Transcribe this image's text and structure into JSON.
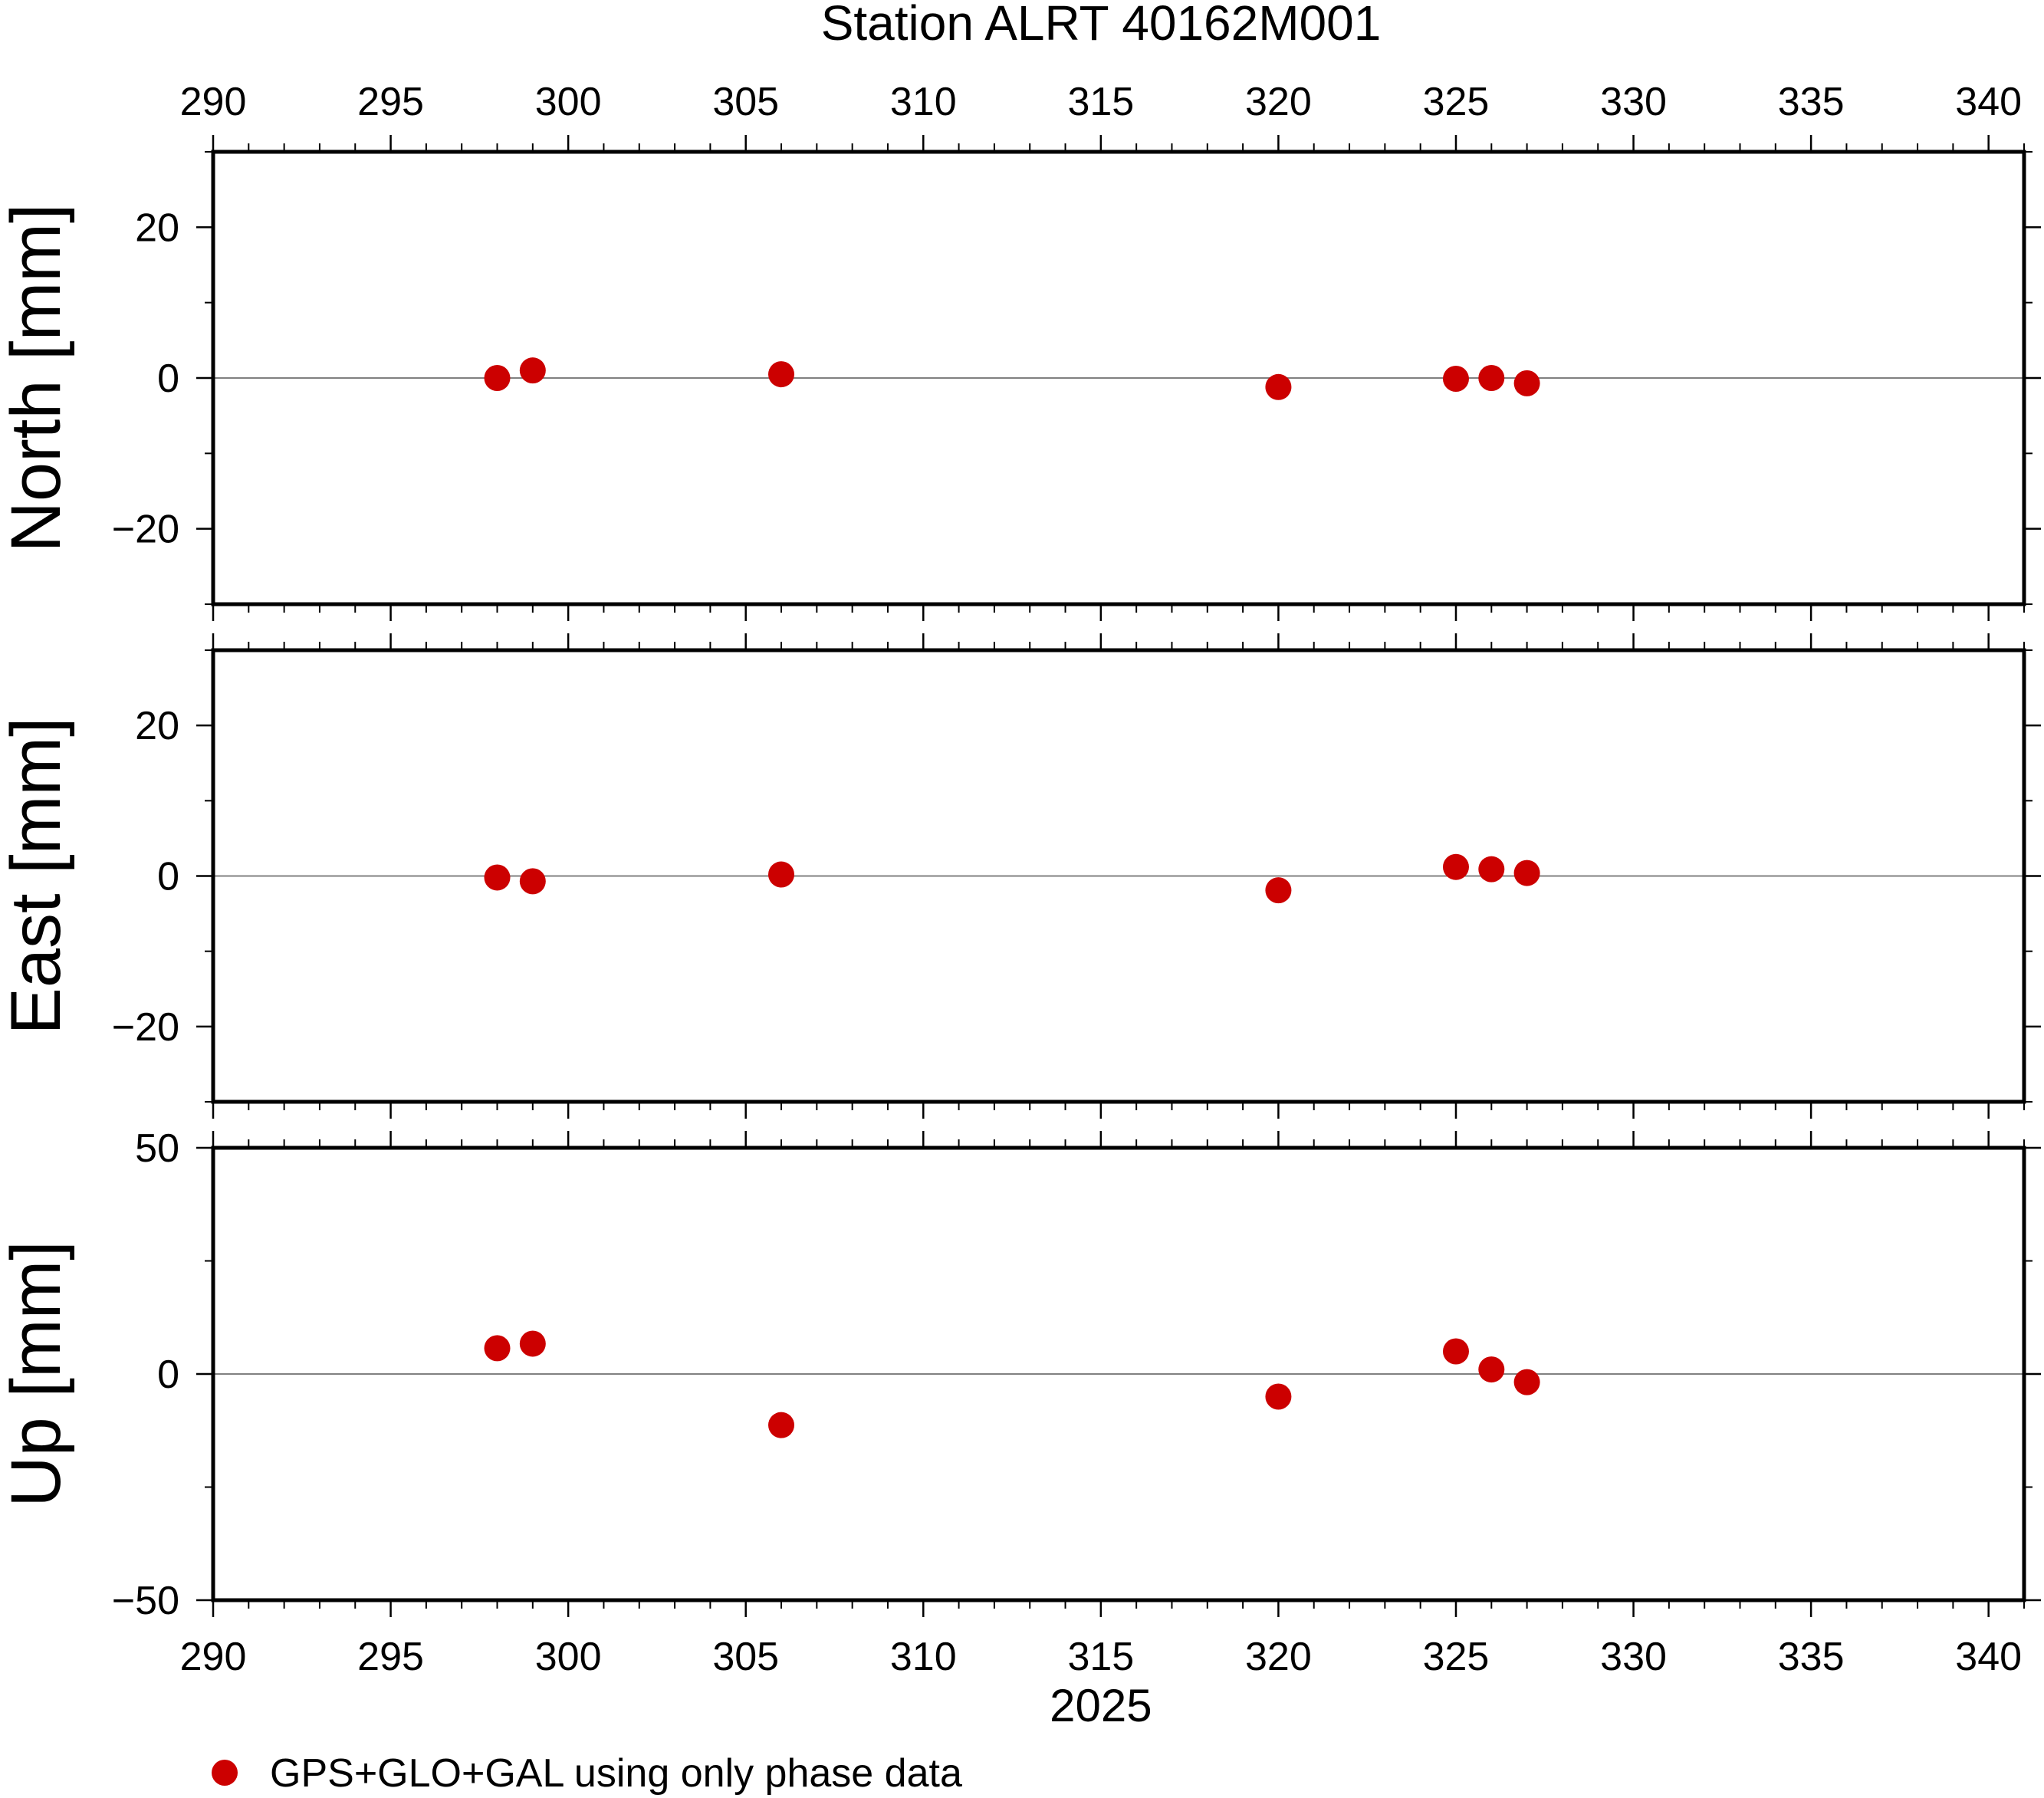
{
  "title": "Station ALRT 40162M001",
  "colors": {
    "point": "#cc0000",
    "frame": "#000000",
    "zero_line": "#808080",
    "background": "#ffffff"
  },
  "chart_data": {
    "type": "scatter",
    "title": "Station ALRT 40162M001",
    "xlabel": "2025",
    "xlim": [
      290,
      341
    ],
    "x_ticks": [
      290,
      295,
      300,
      305,
      310,
      315,
      320,
      325,
      330,
      335,
      340
    ],
    "x_tick_labels": [
      "290",
      "295",
      "300",
      "305",
      "310",
      "315",
      "320",
      "325",
      "330",
      "335",
      "340"
    ],
    "grid": false,
    "legend": {
      "position": "bottom-left",
      "entries": [
        {
          "label": "GPS+GLO+GAL using only phase data",
          "color": "#cc0000",
          "marker": "circle"
        }
      ]
    },
    "x": [
      298,
      299,
      306,
      320,
      325,
      326,
      327
    ],
    "panels": [
      {
        "id": "north",
        "ylabel": "North [mm]",
        "ylim": [
          -30,
          30
        ],
        "y_ticks": [
          -20,
          0,
          20
        ],
        "y_tick_labels": [
          "−20",
          "0",
          "20"
        ],
        "values": [
          0.0,
          1.0,
          0.5,
          -1.2,
          -0.1,
          0.0,
          -0.7
        ]
      },
      {
        "id": "east",
        "ylabel": "East [mm]",
        "ylim": [
          -30,
          30
        ],
        "y_ticks": [
          -20,
          0,
          20
        ],
        "y_tick_labels": [
          "−20",
          "0",
          "20"
        ],
        "values": [
          -0.2,
          -0.7,
          0.2,
          -1.9,
          1.2,
          0.9,
          0.4
        ]
      },
      {
        "id": "up",
        "ylabel": "Up [mm]",
        "ylim": [
          -50,
          50
        ],
        "y_ticks": [
          -50,
          0,
          50
        ],
        "y_tick_labels": [
          "−50",
          "0",
          "50"
        ],
        "values": [
          5.7,
          6.7,
          -11.3,
          -5.0,
          5.0,
          1.0,
          -1.8
        ]
      }
    ]
  }
}
